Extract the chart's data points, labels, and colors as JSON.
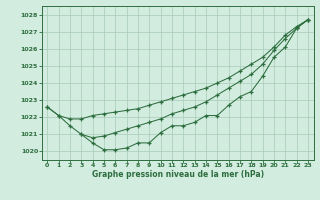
{
  "xlabel": "Graphe pression niveau de la mer (hPa)",
  "xlim": [
    -0.5,
    23.5
  ],
  "ylim": [
    1019.5,
    1028.5
  ],
  "yticks": [
    1020,
    1021,
    1022,
    1023,
    1024,
    1025,
    1026,
    1027,
    1028
  ],
  "xticks": [
    0,
    1,
    2,
    3,
    4,
    5,
    6,
    7,
    8,
    9,
    10,
    11,
    12,
    13,
    14,
    15,
    16,
    17,
    18,
    19,
    20,
    21,
    22,
    23
  ],
  "bg_color": "#d3ece0",
  "grid_color": "#a8ccb8",
  "line_color": "#2d6e3e",
  "series": [
    {
      "x": [
        0,
        1,
        2,
        3,
        4,
        5,
        6,
        7,
        8,
        9,
        10,
        11,
        12,
        13,
        14,
        15,
        16,
        17,
        18,
        19,
        20,
        21,
        22,
        23
      ],
      "y": [
        1022.6,
        1022.1,
        1021.9,
        1021.9,
        1022.1,
        1022.2,
        1022.3,
        1022.4,
        1022.5,
        1022.7,
        1022.9,
        1023.1,
        1023.3,
        1023.5,
        1023.7,
        1024.0,
        1024.3,
        1024.7,
        1025.1,
        1025.5,
        1026.1,
        1026.8,
        1027.3,
        1027.7
      ]
    },
    {
      "x": [
        0,
        1,
        2,
        3,
        4,
        5,
        6,
        7,
        8,
        9,
        10,
        11,
        12,
        13,
        14,
        15,
        16,
        17,
        18,
        19,
        20,
        21,
        22,
        23
      ],
      "y": [
        1022.6,
        1022.1,
        1021.5,
        1021.0,
        1020.8,
        1020.9,
        1021.1,
        1021.3,
        1021.5,
        1021.7,
        1021.9,
        1022.2,
        1022.4,
        1022.6,
        1022.9,
        1023.3,
        1023.7,
        1024.1,
        1024.5,
        1025.1,
        1025.9,
        1026.6,
        1027.2,
        1027.7
      ]
    },
    {
      "x": [
        3,
        4,
        5,
        6,
        7,
        8,
        9,
        10,
        11,
        12,
        13,
        14,
        15,
        16,
        17,
        18,
        19,
        20,
        21,
        22,
        23
      ],
      "y": [
        1021.0,
        1020.5,
        1020.1,
        1020.1,
        1020.2,
        1020.5,
        1020.5,
        1021.1,
        1021.5,
        1021.5,
        1021.7,
        1022.1,
        1022.1,
        1022.7,
        1023.2,
        1023.5,
        1024.4,
        1025.5,
        1026.1,
        1027.2,
        1027.7
      ]
    }
  ]
}
